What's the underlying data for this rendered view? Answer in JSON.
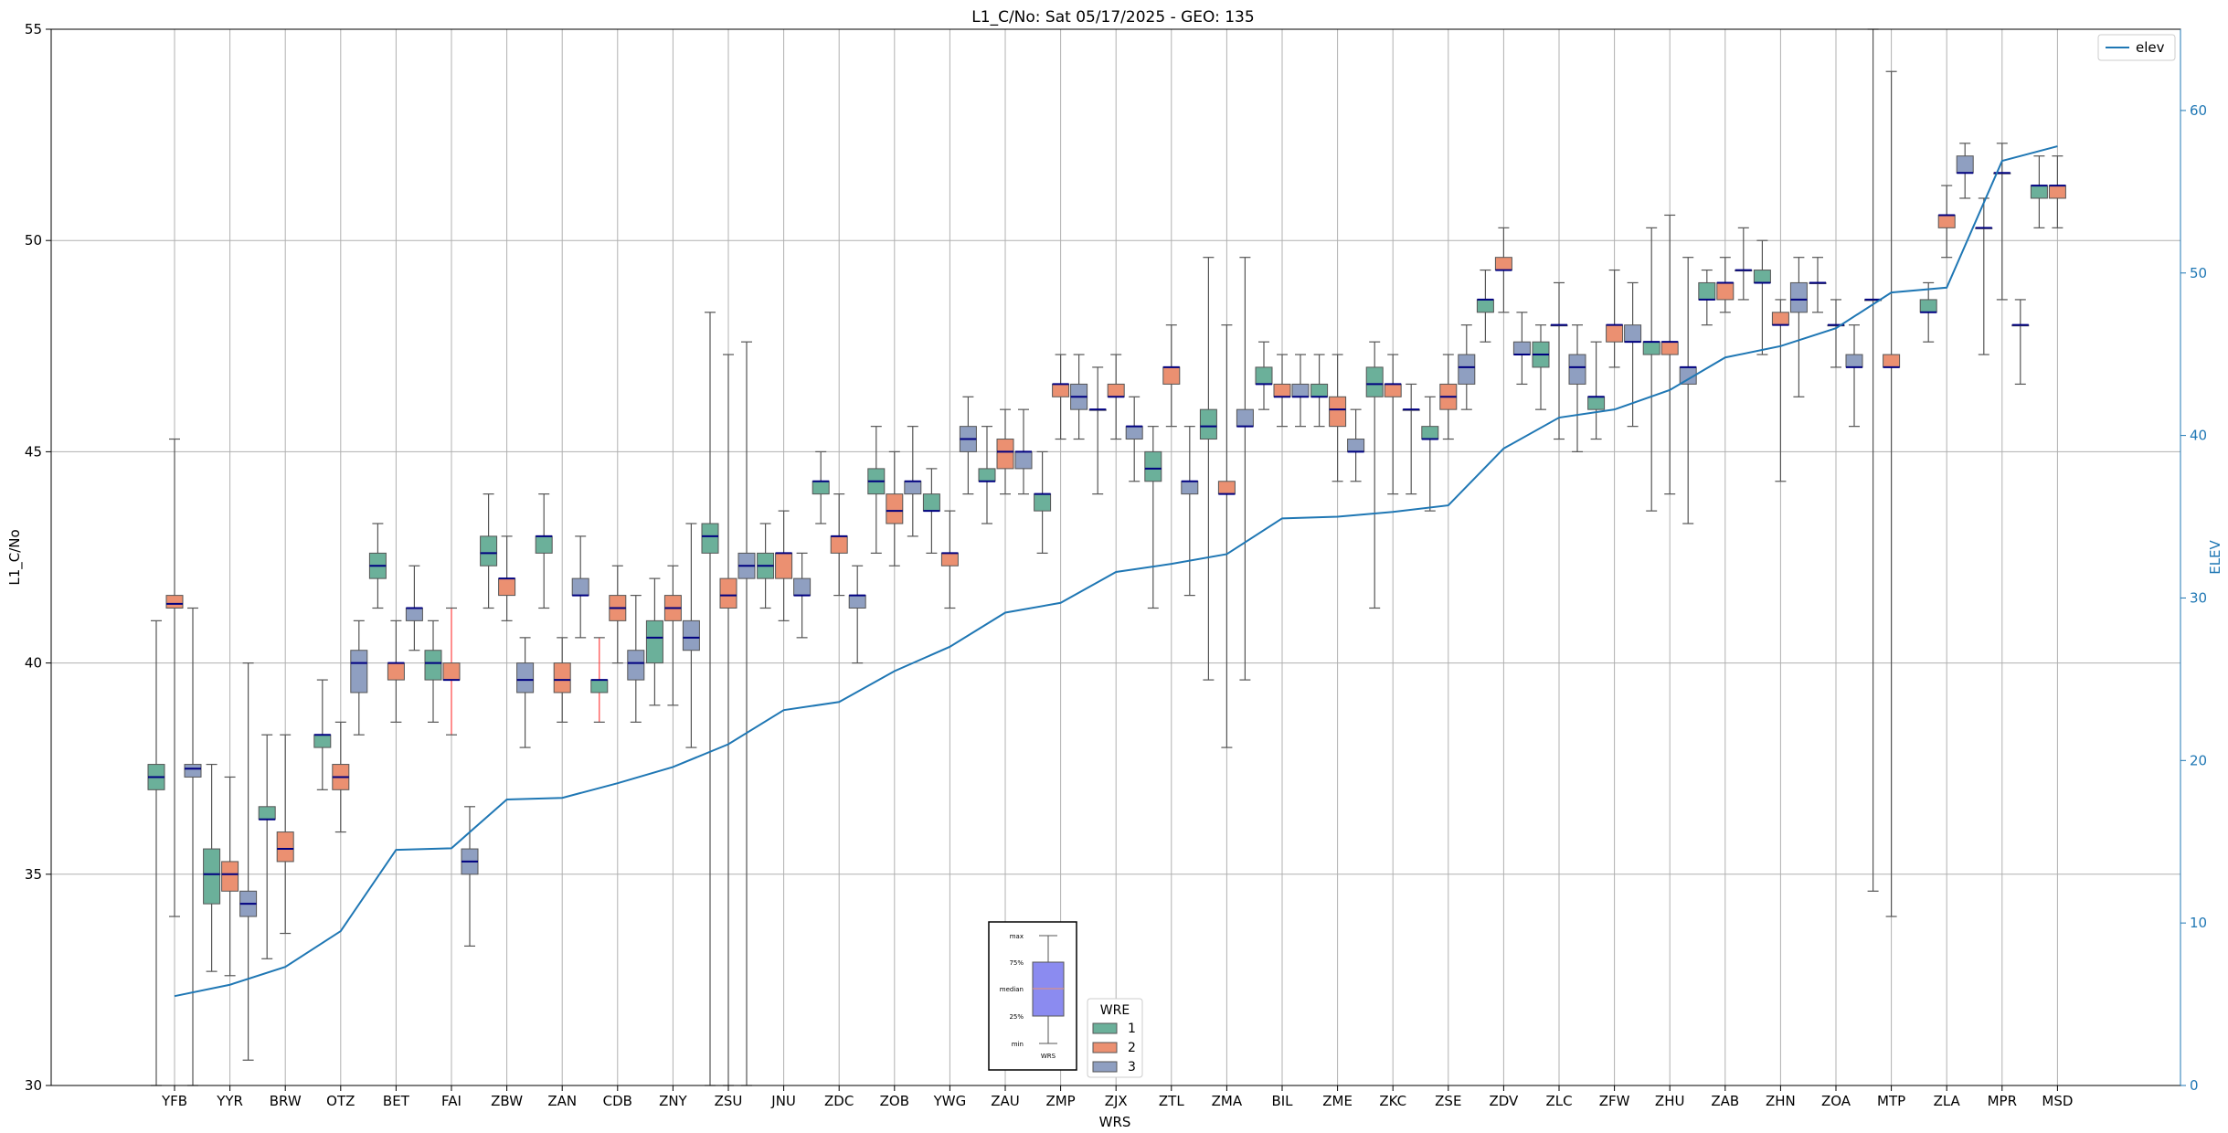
{
  "chart_data": {
    "type": "box",
    "title": "L1_C/No: Sat 05/17/2025 - GEO: 135",
    "xlabel": "WRS",
    "ylabel": "L1_C/No",
    "y2label": "ELEV",
    "ylim": [
      30,
      55
    ],
    "y2lim": [
      0,
      65
    ],
    "yticks": [
      30,
      35,
      40,
      45,
      50,
      55
    ],
    "y2ticks": [
      0,
      10,
      20,
      30,
      40,
      50,
      60
    ],
    "grid": true,
    "colors": {
      "wre1": "#6bb09a",
      "wre2": "#eb9071",
      "wre3": "#8f9fc1",
      "median": "#000080",
      "elev": "#1f77b4",
      "whisker": "#555555",
      "whisker_alt": "#ff4444"
    },
    "legend_elev": {
      "placement": "top-right",
      "label": "elev"
    },
    "legend_wre": {
      "placement": "bottom-center",
      "title": "WRE",
      "entries": [
        "1",
        "2",
        "3"
      ]
    },
    "inset_key": {
      "labels": [
        "max",
        "75%",
        "median",
        "25%",
        "min"
      ],
      "caption": "WRS"
    },
    "categories": [
      "YFB",
      "YYR",
      "BRW",
      "OTZ",
      "BET",
      "FAI",
      "ZBW",
      "ZAN",
      "CDB",
      "ZNY",
      "ZSU",
      "JNU",
      "ZDC",
      "ZOB",
      "YWG",
      "ZAU",
      "ZMP",
      "ZJX",
      "ZTL",
      "ZMA",
      "BIL",
      "ZME",
      "ZKC",
      "ZSE",
      "ZDV",
      "ZLC",
      "ZFW",
      "ZHU",
      "ZAB",
      "ZHN",
      "ZOA",
      "MTP",
      "ZLA",
      "MPR",
      "MSD"
    ],
    "elev": [
      5.5,
      6.2,
      7.3,
      9.5,
      14.5,
      14.6,
      17.6,
      17.7,
      18.6,
      19.6,
      21.0,
      23.1,
      23.6,
      25.5,
      27.0,
      29.1,
      29.7,
      31.6,
      32.1,
      32.7,
      34.9,
      35.0,
      35.3,
      35.7,
      39.2,
      41.1,
      41.6,
      42.8,
      44.8,
      45.5,
      46.6,
      48.8,
      49.1,
      56.9,
      57.8
    ],
    "boxes": [
      {
        "station": "YFB",
        "wre": 1,
        "min": 30.0,
        "q1": 37.0,
        "median": 37.3,
        "q3": 37.6,
        "max": 41.0
      },
      {
        "station": "YFB",
        "wre": 2,
        "min": 34.0,
        "q1": 41.3,
        "median": 41.4,
        "q3": 41.6,
        "max": 45.3
      },
      {
        "station": "YFB",
        "wre": 3,
        "min": 30.0,
        "q1": 37.3,
        "median": 37.5,
        "q3": 37.6,
        "max": 41.3
      },
      {
        "station": "YYR",
        "wre": 1,
        "min": 32.7,
        "q1": 34.3,
        "median": 35.0,
        "q3": 35.6,
        "max": 37.6
      },
      {
        "station": "YYR",
        "wre": 2,
        "min": 32.6,
        "q1": 34.6,
        "median": 35.0,
        "q3": 35.3,
        "max": 37.3
      },
      {
        "station": "YYR",
        "wre": 3,
        "min": 30.6,
        "q1": 34.0,
        "median": 34.3,
        "q3": 34.6,
        "max": 40.0
      },
      {
        "station": "BRW",
        "wre": 1,
        "min": 33.0,
        "q1": 36.3,
        "median": 36.3,
        "q3": 36.6,
        "max": 38.3
      },
      {
        "station": "BRW",
        "wre": 2,
        "min": 33.6,
        "q1": 35.3,
        "median": 35.6,
        "q3": 36.0,
        "max": 38.3
      },
      {
        "station": "OTZ",
        "wre": 1,
        "min": 37.0,
        "q1": 38.0,
        "median": 38.3,
        "q3": 38.3,
        "max": 39.6
      },
      {
        "station": "OTZ",
        "wre": 2,
        "min": 36.0,
        "q1": 37.0,
        "median": 37.3,
        "q3": 37.6,
        "max": 38.6
      },
      {
        "station": "OTZ",
        "wre": 3,
        "min": 38.3,
        "q1": 39.3,
        "median": 40.0,
        "q3": 40.3,
        "max": 41.0
      },
      {
        "station": "BET",
        "wre": 1,
        "min": 41.3,
        "q1": 42.0,
        "median": 42.3,
        "q3": 42.6,
        "max": 43.3
      },
      {
        "station": "BET",
        "wre": 2,
        "min": 38.6,
        "q1": 39.6,
        "median": 40.0,
        "q3": 40.0,
        "max": 41.0
      },
      {
        "station": "BET",
        "wre": 3,
        "min": 40.3,
        "q1": 41.0,
        "median": 41.3,
        "q3": 41.3,
        "max": 42.3
      },
      {
        "station": "FAI",
        "wre": 1,
        "min": 38.6,
        "q1": 39.6,
        "median": 40.0,
        "q3": 40.3,
        "max": 41.0
      },
      {
        "station": "FAI",
        "wre": 2,
        "min": 38.3,
        "q1": 39.6,
        "median": 39.6,
        "q3": 40.0,
        "max": 41.3,
        "whisker_alt": true
      },
      {
        "station": "FAI",
        "wre": 3,
        "min": 33.3,
        "q1": 35.0,
        "median": 35.3,
        "q3": 35.6,
        "max": 36.6
      },
      {
        "station": "ZBW",
        "wre": 1,
        "min": 41.3,
        "q1": 42.3,
        "median": 42.6,
        "q3": 43.0,
        "max": 44.0
      },
      {
        "station": "ZBW",
        "wre": 2,
        "min": 41.0,
        "q1": 41.6,
        "median": 42.0,
        "q3": 42.0,
        "max": 43.0
      },
      {
        "station": "ZBW",
        "wre": 3,
        "min": 38.0,
        "q1": 39.3,
        "median": 39.6,
        "q3": 40.0,
        "max": 40.6
      },
      {
        "station": "ZAN",
        "wre": 1,
        "min": 41.3,
        "q1": 42.6,
        "median": 43.0,
        "q3": 43.0,
        "max": 44.0
      },
      {
        "station": "ZAN",
        "wre": 2,
        "min": 38.6,
        "q1": 39.3,
        "median": 39.6,
        "q3": 40.0,
        "max": 40.6
      },
      {
        "station": "ZAN",
        "wre": 3,
        "min": 40.6,
        "q1": 41.6,
        "median": 41.6,
        "q3": 42.0,
        "max": 43.0
      },
      {
        "station": "CDB",
        "wre": 1,
        "min": 38.6,
        "q1": 39.3,
        "median": 39.6,
        "q3": 39.6,
        "max": 40.6,
        "whisker_alt": true
      },
      {
        "station": "CDB",
        "wre": 2,
        "min": 40.0,
        "q1": 41.0,
        "median": 41.3,
        "q3": 41.6,
        "max": 42.3
      },
      {
        "station": "CDB",
        "wre": 3,
        "min": 38.6,
        "q1": 39.6,
        "median": 40.0,
        "q3": 40.3,
        "max": 41.6
      },
      {
        "station": "ZNY",
        "wre": 1,
        "min": 39.0,
        "q1": 40.0,
        "median": 40.6,
        "q3": 41.0,
        "max": 42.0
      },
      {
        "station": "ZNY",
        "wre": 2,
        "min": 39.0,
        "q1": 41.0,
        "median": 41.3,
        "q3": 41.6,
        "max": 42.3
      },
      {
        "station": "ZNY",
        "wre": 3,
        "min": 38.0,
        "q1": 40.3,
        "median": 40.6,
        "q3": 41.0,
        "max": 43.3
      },
      {
        "station": "ZSU",
        "wre": 1,
        "min": 30.0,
        "q1": 42.6,
        "median": 43.0,
        "q3": 43.3,
        "max": 48.3
      },
      {
        "station": "ZSU",
        "wre": 2,
        "min": 30.0,
        "q1": 41.3,
        "median": 41.6,
        "q3": 42.0,
        "max": 47.3
      },
      {
        "station": "ZSU",
        "wre": 3,
        "min": 30.0,
        "q1": 42.0,
        "median": 42.3,
        "q3": 42.6,
        "max": 47.6
      },
      {
        "station": "JNU",
        "wre": 1,
        "min": 41.3,
        "q1": 42.0,
        "median": 42.3,
        "q3": 42.6,
        "max": 43.3
      },
      {
        "station": "JNU",
        "wre": 2,
        "min": 41.0,
        "q1": 42.0,
        "median": 42.6,
        "q3": 42.6,
        "max": 43.6
      },
      {
        "station": "JNU",
        "wre": 3,
        "min": 40.6,
        "q1": 41.6,
        "median": 41.6,
        "q3": 42.0,
        "max": 42.6
      },
      {
        "station": "ZDC",
        "wre": 1,
        "min": 43.3,
        "q1": 44.0,
        "median": 44.3,
        "q3": 44.3,
        "max": 45.0
      },
      {
        "station": "ZDC",
        "wre": 2,
        "min": 41.6,
        "q1": 42.6,
        "median": 43.0,
        "q3": 43.0,
        "max": 44.0
      },
      {
        "station": "ZDC",
        "wre": 3,
        "min": 40.0,
        "q1": 41.3,
        "median": 41.6,
        "q3": 41.6,
        "max": 42.3
      },
      {
        "station": "ZOB",
        "wre": 1,
        "min": 42.6,
        "q1": 44.0,
        "median": 44.3,
        "q3": 44.6,
        "max": 45.6
      },
      {
        "station": "ZOB",
        "wre": 2,
        "min": 42.3,
        "q1": 43.3,
        "median": 43.6,
        "q3": 44.0,
        "max": 45.0
      },
      {
        "station": "ZOB",
        "wre": 3,
        "min": 43.0,
        "q1": 44.0,
        "median": 44.3,
        "q3": 44.3,
        "max": 45.6
      },
      {
        "station": "YWG",
        "wre": 1,
        "min": 42.6,
        "q1": 43.6,
        "median": 43.6,
        "q3": 44.0,
        "max": 44.6
      },
      {
        "station": "YWG",
        "wre": 2,
        "min": 41.3,
        "q1": 42.3,
        "median": 42.6,
        "q3": 42.6,
        "max": 43.6
      },
      {
        "station": "YWG",
        "wre": 3,
        "min": 44.0,
        "q1": 45.0,
        "median": 45.3,
        "q3": 45.6,
        "max": 46.3
      },
      {
        "station": "ZAU",
        "wre": 1,
        "min": 43.3,
        "q1": 44.3,
        "median": 44.3,
        "q3": 44.6,
        "max": 45.6
      },
      {
        "station": "ZAU",
        "wre": 2,
        "min": 44.0,
        "q1": 44.6,
        "median": 45.0,
        "q3": 45.3,
        "max": 46.0
      },
      {
        "station": "ZAU",
        "wre": 3,
        "min": 44.0,
        "q1": 44.6,
        "median": 45.0,
        "q3": 45.0,
        "max": 46.0
      },
      {
        "station": "ZMP",
        "wre": 1,
        "min": 42.6,
        "q1": 43.6,
        "median": 44.0,
        "q3": 44.0,
        "max": 45.0
      },
      {
        "station": "ZMP",
        "wre": 2,
        "min": 45.3,
        "q1": 46.3,
        "median": 46.6,
        "q3": 46.6,
        "max": 47.3
      },
      {
        "station": "ZMP",
        "wre": 3,
        "min": 45.3,
        "q1": 46.0,
        "median": 46.3,
        "q3": 46.6,
        "max": 47.3
      },
      {
        "station": "ZJX",
        "wre": 1,
        "min": 44.0,
        "q1": 46.0,
        "median": 46.0,
        "q3": 46.0,
        "max": 47.0
      },
      {
        "station": "ZJX",
        "wre": 2,
        "min": 45.3,
        "q1": 46.3,
        "median": 46.3,
        "q3": 46.6,
        "max": 47.3
      },
      {
        "station": "ZJX",
        "wre": 3,
        "min": 44.3,
        "q1": 45.3,
        "median": 45.6,
        "q3": 45.6,
        "max": 46.3
      },
      {
        "station": "ZTL",
        "wre": 1,
        "min": 41.3,
        "q1": 44.3,
        "median": 44.6,
        "q3": 45.0,
        "max": 45.6
      },
      {
        "station": "ZTL",
        "wre": 2,
        "min": 45.6,
        "q1": 46.6,
        "median": 47.0,
        "q3": 47.0,
        "max": 48.0
      },
      {
        "station": "ZTL",
        "wre": 3,
        "min": 41.6,
        "q1": 44.0,
        "median": 44.3,
        "q3": 44.3,
        "max": 45.6
      },
      {
        "station": "ZMA",
        "wre": 1,
        "min": 39.6,
        "q1": 45.3,
        "median": 45.6,
        "q3": 46.0,
        "max": 49.6
      },
      {
        "station": "ZMA",
        "wre": 2,
        "min": 38.0,
        "q1": 44.0,
        "median": 44.0,
        "q3": 44.3,
        "max": 48.0
      },
      {
        "station": "ZMA",
        "wre": 3,
        "min": 39.6,
        "q1": 45.6,
        "median": 45.6,
        "q3": 46.0,
        "max": 49.6
      },
      {
        "station": "BIL",
        "wre": 1,
        "min": 46.0,
        "q1": 46.6,
        "median": 46.6,
        "q3": 47.0,
        "max": 47.6
      },
      {
        "station": "BIL",
        "wre": 2,
        "min": 45.6,
        "q1": 46.3,
        "median": 46.3,
        "q3": 46.6,
        "max": 47.3
      },
      {
        "station": "BIL",
        "wre": 3,
        "min": 45.6,
        "q1": 46.3,
        "median": 46.3,
        "q3": 46.6,
        "max": 47.3
      },
      {
        "station": "ZME",
        "wre": 1,
        "min": 45.6,
        "q1": 46.3,
        "median": 46.3,
        "q3": 46.6,
        "max": 47.3
      },
      {
        "station": "ZME",
        "wre": 2,
        "min": 44.3,
        "q1": 45.6,
        "median": 46.0,
        "q3": 46.3,
        "max": 47.3
      },
      {
        "station": "ZME",
        "wre": 3,
        "min": 44.3,
        "q1": 45.0,
        "median": 45.0,
        "q3": 45.3,
        "max": 46.0
      },
      {
        "station": "ZKC",
        "wre": 1,
        "min": 41.3,
        "q1": 46.3,
        "median": 46.6,
        "q3": 47.0,
        "max": 47.6
      },
      {
        "station": "ZKC",
        "wre": 2,
        "min": 44.0,
        "q1": 46.3,
        "median": 46.6,
        "q3": 46.6,
        "max": 47.3
      },
      {
        "station": "ZKC",
        "wre": 3,
        "min": 44.0,
        "q1": 46.0,
        "median": 46.0,
        "q3": 46.0,
        "max": 46.6
      },
      {
        "station": "ZSE",
        "wre": 1,
        "min": 43.6,
        "q1": 45.3,
        "median": 45.3,
        "q3": 45.6,
        "max": 46.3
      },
      {
        "station": "ZSE",
        "wre": 2,
        "min": 45.3,
        "q1": 46.0,
        "median": 46.3,
        "q3": 46.6,
        "max": 47.3
      },
      {
        "station": "ZSE",
        "wre": 3,
        "min": 46.0,
        "q1": 46.6,
        "median": 47.0,
        "q3": 47.3,
        "max": 48.0
      },
      {
        "station": "ZDV",
        "wre": 1,
        "min": 47.6,
        "q1": 48.3,
        "median": 48.6,
        "q3": 48.6,
        "max": 49.3
      },
      {
        "station": "ZDV",
        "wre": 2,
        "min": 48.3,
        "q1": 49.3,
        "median": 49.3,
        "q3": 49.6,
        "max": 50.3
      },
      {
        "station": "ZDV",
        "wre": 3,
        "min": 46.6,
        "q1": 47.3,
        "median": 47.3,
        "q3": 47.6,
        "max": 48.3
      },
      {
        "station": "ZLC",
        "wre": 1,
        "min": 46.0,
        "q1": 47.0,
        "median": 47.3,
        "q3": 47.6,
        "max": 48.0
      },
      {
        "station": "ZLC",
        "wre": 2,
        "min": 45.3,
        "q1": 48.0,
        "median": 48.0,
        "q3": 48.0,
        "max": 49.0
      },
      {
        "station": "ZLC",
        "wre": 3,
        "min": 45.0,
        "q1": 46.6,
        "median": 47.0,
        "q3": 47.3,
        "max": 48.0
      },
      {
        "station": "ZFW",
        "wre": 1,
        "min": 45.3,
        "q1": 46.0,
        "median": 46.3,
        "q3": 46.3,
        "max": 47.6
      },
      {
        "station": "ZFW",
        "wre": 2,
        "min": 47.0,
        "q1": 47.6,
        "median": 48.0,
        "q3": 48.0,
        "max": 49.3
      },
      {
        "station": "ZFW",
        "wre": 3,
        "min": 45.6,
        "q1": 47.6,
        "median": 47.6,
        "q3": 48.0,
        "max": 49.0
      },
      {
        "station": "ZHU",
        "wre": 1,
        "min": 43.6,
        "q1": 47.3,
        "median": 47.6,
        "q3": 47.6,
        "max": 50.3
      },
      {
        "station": "ZHU",
        "wre": 2,
        "min": 44.0,
        "q1": 47.3,
        "median": 47.6,
        "q3": 47.6,
        "max": 50.6
      },
      {
        "station": "ZHU",
        "wre": 3,
        "min": 43.3,
        "q1": 46.6,
        "median": 47.0,
        "q3": 47.0,
        "max": 49.6
      },
      {
        "station": "ZAB",
        "wre": 1,
        "min": 48.0,
        "q1": 48.6,
        "median": 48.6,
        "q3": 49.0,
        "max": 49.3
      },
      {
        "station": "ZAB",
        "wre": 2,
        "min": 48.3,
        "q1": 48.6,
        "median": 49.0,
        "q3": 49.0,
        "max": 49.6
      },
      {
        "station": "ZAB",
        "wre": 3,
        "min": 48.6,
        "q1": 49.3,
        "median": 49.3,
        "q3": 49.3,
        "max": 50.3
      },
      {
        "station": "ZHN",
        "wre": 1,
        "min": 47.3,
        "q1": 49.0,
        "median": 49.0,
        "q3": 49.3,
        "max": 50.0
      },
      {
        "station": "ZHN",
        "wre": 2,
        "min": 44.3,
        "q1": 48.0,
        "median": 48.0,
        "q3": 48.3,
        "max": 48.6
      },
      {
        "station": "ZHN",
        "wre": 3,
        "min": 46.3,
        "q1": 48.3,
        "median": 48.6,
        "q3": 49.0,
        "max": 49.6
      },
      {
        "station": "ZOA",
        "wre": 1,
        "min": 48.3,
        "q1": 49.0,
        "median": 49.0,
        "q3": 49.0,
        "max": 49.6
      },
      {
        "station": "ZOA",
        "wre": 2,
        "min": 47.0,
        "q1": 48.0,
        "median": 48.0,
        "q3": 48.0,
        "max": 48.6
      },
      {
        "station": "ZOA",
        "wre": 3,
        "min": 45.6,
        "q1": 47.0,
        "median": 47.0,
        "q3": 47.3,
        "max": 48.0
      },
      {
        "station": "MTP",
        "wre": 1,
        "min": 34.6,
        "q1": 48.6,
        "median": 48.6,
        "q3": 48.6,
        "max": 55.0
      },
      {
        "station": "MTP",
        "wre": 2,
        "min": 34.0,
        "q1": 47.0,
        "median": 47.0,
        "q3": 47.3,
        "max": 54.0
      },
      {
        "station": "ZLA",
        "wre": 1,
        "min": 47.6,
        "q1": 48.3,
        "median": 48.3,
        "q3": 48.6,
        "max": 49.0
      },
      {
        "station": "ZLA",
        "wre": 2,
        "min": 49.6,
        "q1": 50.3,
        "median": 50.6,
        "q3": 50.6,
        "max": 51.3
      },
      {
        "station": "ZLA",
        "wre": 3,
        "min": 51.0,
        "q1": 51.6,
        "median": 51.6,
        "q3": 52.0,
        "max": 52.3
      },
      {
        "station": "MPR",
        "wre": 1,
        "min": 47.3,
        "q1": 50.3,
        "median": 50.3,
        "q3": 50.3,
        "max": 51.0
      },
      {
        "station": "MPR",
        "wre": 2,
        "min": 48.6,
        "q1": 51.6,
        "median": 51.6,
        "q3": 51.6,
        "max": 52.3
      },
      {
        "station": "MPR",
        "wre": 3,
        "min": 46.6,
        "q1": 48.0,
        "median": 48.0,
        "q3": 48.0,
        "max": 48.6
      },
      {
        "station": "MSD",
        "wre": 1,
        "min": 50.3,
        "q1": 51.0,
        "median": 51.3,
        "q3": 51.3,
        "max": 52.0
      },
      {
        "station": "MSD",
        "wre": 2,
        "min": 50.3,
        "q1": 51.0,
        "median": 51.3,
        "q3": 51.3,
        "max": 52.0
      }
    ]
  }
}
